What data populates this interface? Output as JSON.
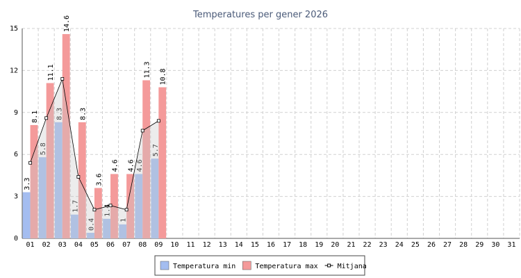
{
  "chart_data": {
    "type": "bar",
    "title": "Temperatures per gener 2026",
    "categories": [
      "01",
      "02",
      "03",
      "04",
      "05",
      "06",
      "07",
      "08",
      "09",
      "10",
      "11",
      "12",
      "13",
      "14",
      "15",
      "16",
      "17",
      "18",
      "19",
      "20",
      "21",
      "22",
      "23",
      "24",
      "25",
      "26",
      "27",
      "28",
      "29",
      "30",
      "31"
    ],
    "series": [
      {
        "name": "Temperatura min",
        "type": "bar",
        "color": "#a4bdf0",
        "values": [
          3.3,
          5.8,
          8.3,
          1.7,
          0.4,
          1.4,
          1.0,
          4.6,
          5.7,
          null,
          null,
          null,
          null,
          null,
          null,
          null,
          null,
          null,
          null,
          null,
          null,
          null,
          null,
          null,
          null,
          null,
          null,
          null,
          null,
          null,
          null
        ]
      },
      {
        "name": "Temperatura max",
        "type": "bar",
        "color": "#f49a9a",
        "values": [
          8.1,
          11.1,
          14.6,
          8.3,
          3.6,
          4.6,
          4.6,
          11.3,
          10.8,
          null,
          null,
          null,
          null,
          null,
          null,
          null,
          null,
          null,
          null,
          null,
          null,
          null,
          null,
          null,
          null,
          null,
          null,
          null,
          null,
          null,
          null
        ]
      },
      {
        "name": "Mitjana",
        "type": "line",
        "color": "#000000",
        "values": [
          5.4,
          8.6,
          11.4,
          4.4,
          2.05,
          2.35,
          2.05,
          7.7,
          8.4,
          null,
          null,
          null,
          null,
          null,
          null,
          null,
          null,
          null,
          null,
          null,
          null,
          null,
          null,
          null,
          null,
          null,
          null,
          null,
          null,
          null,
          null
        ]
      }
    ],
    "ylim": [
      0,
      15
    ],
    "yticks": [
      0,
      3,
      6,
      9,
      12,
      15
    ],
    "grid": true,
    "legend": "bottom"
  }
}
